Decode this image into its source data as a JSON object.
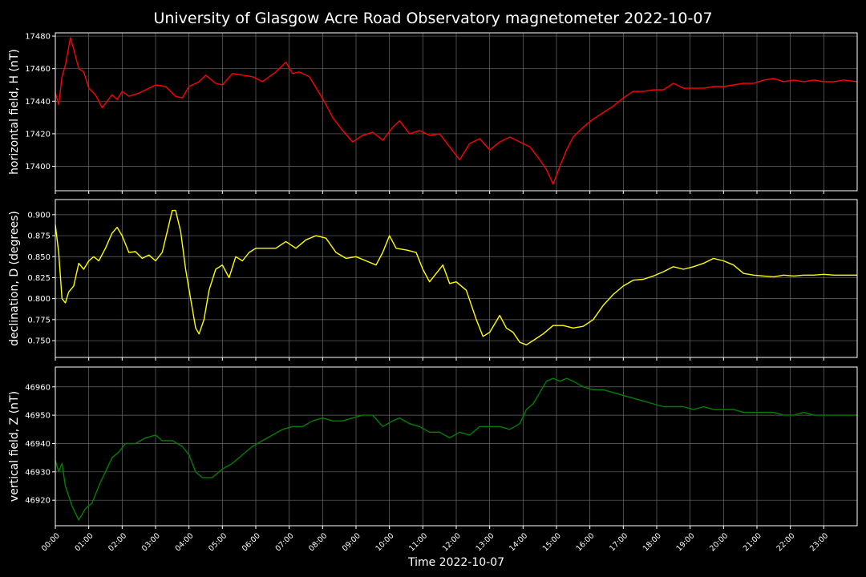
{
  "chart_data": {
    "type": "line",
    "title": "University of Glasgow Acre Road Observatory magnetometer 2022-10-07",
    "xlabel": "Time 2022-10-07",
    "x_ticks": [
      "00:00",
      "01:00",
      "02:00",
      "03:00",
      "04:00",
      "05:00",
      "06:00",
      "07:00",
      "08:00",
      "09:00",
      "10:00",
      "11:00",
      "12:00",
      "13:00",
      "14:00",
      "15:00",
      "16:00",
      "17:00",
      "18:00",
      "19:00",
      "20:00",
      "21:00",
      "22:00",
      "23:00"
    ],
    "xlim": [
      0,
      24
    ],
    "grid": true,
    "panels": [
      {
        "ylabel": "horizontal field, H (nT)",
        "color": "#ff0000",
        "ylim": [
          17385,
          17482
        ],
        "y_ticks": [
          17400,
          17420,
          17440,
          17460,
          17480
        ],
        "y_tick_labels": [
          "17400",
          "17420",
          "17440",
          "17460",
          "17480"
        ],
        "series": {
          "x": [
            0,
            0.1,
            0.2,
            0.3,
            0.45,
            0.55,
            0.7,
            0.85,
            1.0,
            1.2,
            1.4,
            1.55,
            1.7,
            1.85,
            2.0,
            2.2,
            2.5,
            2.8,
            3.0,
            3.3,
            3.6,
            3.8,
            4.0,
            4.3,
            4.5,
            4.8,
            5.0,
            5.3,
            5.6,
            5.9,
            6.2,
            6.6,
            6.9,
            7.1,
            7.3,
            7.6,
            7.9,
            8.1,
            8.3,
            8.6,
            8.9,
            9.2,
            9.5,
            9.8,
            10.1,
            10.3,
            10.6,
            10.9,
            11.2,
            11.5,
            11.8,
            12.1,
            12.4,
            12.7,
            13.0,
            13.3,
            13.6,
            13.9,
            14.2,
            14.5,
            14.7,
            14.9,
            15.1,
            15.3,
            15.5,
            15.8,
            16.1,
            16.4,
            16.7,
            17.0,
            17.3,
            17.6,
            17.9,
            18.2,
            18.5,
            18.8,
            19.1,
            19.4,
            19.7,
            20.0,
            20.3,
            20.6,
            20.9,
            21.2,
            21.5,
            21.8,
            22.1,
            22.4,
            22.7,
            23.0,
            23.3,
            23.6,
            24.0
          ],
          "y": [
            17445,
            17438,
            17455,
            17462,
            17479,
            17472,
            17460,
            17458,
            17448,
            17444,
            17436,
            17440,
            17444,
            17441,
            17446,
            17443,
            17445,
            17448,
            17450,
            17449,
            17443,
            17442,
            17449,
            17452,
            17456,
            17451,
            17450,
            17457,
            17456,
            17455,
            17452,
            17458,
            17464,
            17457,
            17458,
            17455,
            17445,
            17438,
            17430,
            17422,
            17415,
            17419,
            17421,
            17416,
            17424,
            17428,
            17420,
            17422,
            17419,
            17420,
            17412,
            17404,
            17414,
            17417,
            17410,
            17415,
            17418,
            17415,
            17412,
            17404,
            17398,
            17389,
            17400,
            17410,
            17418,
            17424,
            17429,
            17433,
            17437,
            17442,
            17446,
            17446,
            17447,
            17447,
            17451,
            17448,
            17448,
            17448,
            17449,
            17449,
            17450,
            17451,
            17451,
            17453,
            17454,
            17452,
            17453,
            17452,
            17453,
            17452,
            17452,
            17453,
            17452
          ]
        }
      },
      {
        "ylabel": "declination, D (degrees)",
        "color": "#ffff00",
        "ylim": [
          0.73,
          0.918
        ],
        "y_ticks": [
          0.75,
          0.775,
          0.8,
          0.825,
          0.85,
          0.875,
          0.9
        ],
        "y_tick_labels": [
          "0.750",
          "0.775",
          "0.800",
          "0.825",
          "0.850",
          "0.875",
          "0.900"
        ],
        "series": {
          "x": [
            0,
            0.1,
            0.2,
            0.3,
            0.4,
            0.55,
            0.7,
            0.85,
            1.0,
            1.15,
            1.3,
            1.5,
            1.7,
            1.85,
            2.0,
            2.2,
            2.4,
            2.6,
            2.8,
            3.0,
            3.2,
            3.35,
            3.5,
            3.6,
            3.75,
            3.9,
            4.05,
            4.2,
            4.3,
            4.45,
            4.6,
            4.8,
            5.0,
            5.2,
            5.4,
            5.6,
            5.8,
            6.0,
            6.3,
            6.6,
            6.9,
            7.2,
            7.5,
            7.8,
            8.1,
            8.4,
            8.7,
            9.0,
            9.3,
            9.6,
            9.8,
            10.0,
            10.2,
            10.5,
            10.8,
            11.0,
            11.2,
            11.4,
            11.6,
            11.8,
            12.0,
            12.3,
            12.6,
            12.8,
            13.0,
            13.3,
            13.5,
            13.7,
            13.9,
            14.1,
            14.3,
            14.6,
            14.9,
            15.2,
            15.5,
            15.8,
            16.1,
            16.4,
            16.7,
            17.0,
            17.3,
            17.6,
            17.9,
            18.2,
            18.5,
            18.8,
            19.1,
            19.4,
            19.7,
            20.0,
            20.3,
            20.6,
            20.9,
            21.2,
            21.5,
            21.8,
            22.1,
            22.4,
            22.7,
            23.0,
            23.3,
            23.6,
            24.0
          ],
          "y": [
            0.888,
            0.855,
            0.8,
            0.795,
            0.808,
            0.815,
            0.842,
            0.835,
            0.845,
            0.85,
            0.845,
            0.86,
            0.878,
            0.885,
            0.875,
            0.855,
            0.856,
            0.848,
            0.852,
            0.845,
            0.855,
            0.88,
            0.905,
            0.905,
            0.88,
            0.835,
            0.8,
            0.765,
            0.758,
            0.775,
            0.81,
            0.835,
            0.84,
            0.825,
            0.85,
            0.845,
            0.855,
            0.86,
            0.86,
            0.86,
            0.868,
            0.86,
            0.87,
            0.875,
            0.872,
            0.855,
            0.848,
            0.85,
            0.845,
            0.84,
            0.855,
            0.875,
            0.86,
            0.858,
            0.855,
            0.835,
            0.82,
            0.83,
            0.84,
            0.818,
            0.82,
            0.81,
            0.775,
            0.755,
            0.76,
            0.78,
            0.765,
            0.76,
            0.748,
            0.745,
            0.75,
            0.758,
            0.768,
            0.768,
            0.765,
            0.767,
            0.775,
            0.792,
            0.805,
            0.815,
            0.822,
            0.823,
            0.827,
            0.832,
            0.838,
            0.835,
            0.838,
            0.842,
            0.848,
            0.845,
            0.84,
            0.83,
            0.828,
            0.827,
            0.826,
            0.828,
            0.827,
            0.828,
            0.828,
            0.829,
            0.828,
            0.828,
            0.828
          ]
        }
      },
      {
        "ylabel": "vertical field, Z (nT)",
        "color": "#008000",
        "ylim": [
          46911,
          46967
        ],
        "y_ticks": [
          46920,
          46930,
          46940,
          46950,
          46960
        ],
        "y_tick_labels": [
          "46920",
          "46930",
          "46940",
          "46950",
          "46960"
        ],
        "series": {
          "x": [
            0,
            0.1,
            0.2,
            0.3,
            0.5,
            0.7,
            0.9,
            1.1,
            1.3,
            1.5,
            1.7,
            1.9,
            2.1,
            2.4,
            2.7,
            3.0,
            3.2,
            3.5,
            3.8,
            4.0,
            4.2,
            4.4,
            4.7,
            5.0,
            5.3,
            5.6,
            5.9,
            6.2,
            6.5,
            6.8,
            7.1,
            7.4,
            7.7,
            8.0,
            8.3,
            8.6,
            8.9,
            9.2,
            9.5,
            9.8,
            10.1,
            10.3,
            10.6,
            10.9,
            11.2,
            11.5,
            11.8,
            12.1,
            12.4,
            12.7,
            13.0,
            13.3,
            13.6,
            13.9,
            14.1,
            14.3,
            14.5,
            14.7,
            14.9,
            15.1,
            15.3,
            15.5,
            15.8,
            16.1,
            16.4,
            16.7,
            17.0,
            17.3,
            17.6,
            17.9,
            18.2,
            18.5,
            18.8,
            19.1,
            19.4,
            19.7,
            20.0,
            20.3,
            20.6,
            20.9,
            21.2,
            21.5,
            21.8,
            22.1,
            22.4,
            22.7,
            23.0,
            23.3,
            23.6,
            24.0
          ],
          "y": [
            46934,
            46930,
            46933,
            46925,
            46918,
            46913,
            46917,
            46919,
            46925,
            46930,
            46935,
            46937,
            46940,
            46940,
            46942,
            46943,
            46941,
            46941,
            46939,
            46936,
            46930,
            46928,
            46928,
            46931,
            46933,
            46936,
            46939,
            46941,
            46943,
            46945,
            46946,
            46946,
            46948,
            46949,
            46948,
            46948,
            46949,
            46950,
            46950,
            46946,
            46948,
            46949,
            46947,
            46946,
            46944,
            46944,
            46942,
            46944,
            46943,
            46946,
            46946,
            46946,
            46945,
            46947,
            46952,
            46954,
            46958,
            46962,
            46963,
            46962,
            46963,
            46962,
            46960,
            46959,
            46959,
            46958,
            46957,
            46956,
            46955,
            46954,
            46953,
            46953,
            46953,
            46952,
            46953,
            46952,
            46952,
            46952,
            46951,
            46951,
            46951,
            46951,
            46950,
            46950,
            46951,
            46950,
            46950,
            46950,
            46950,
            46950
          ]
        }
      }
    ]
  }
}
